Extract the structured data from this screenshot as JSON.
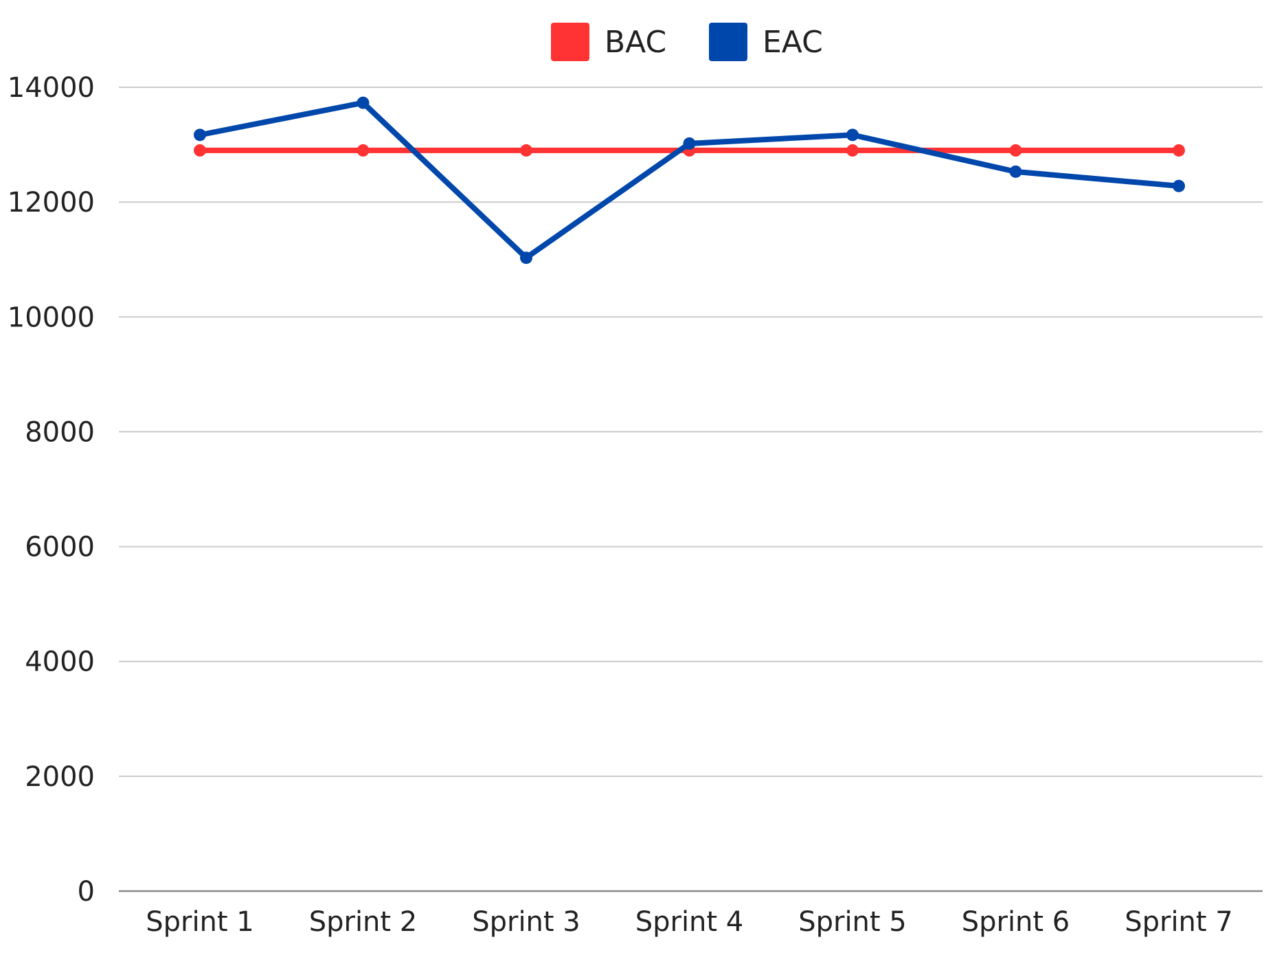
{
  "chart_data": {
    "type": "line",
    "title": "",
    "xlabel": "",
    "ylabel": "",
    "categories": [
      "Sprint 1",
      "Sprint 2",
      "Sprint 3",
      "Sprint 4",
      "Sprint 5",
      "Sprint 6",
      "Sprint 7"
    ],
    "ylim": [
      0,
      14000
    ],
    "yticks": [
      "0",
      "2000",
      "4000",
      "6000",
      "8000",
      "10000",
      "12000",
      "14000"
    ],
    "grid": true,
    "legend_position": "top-center",
    "series": [
      {
        "name": "BAC",
        "color": "#ff3333",
        "values": [
          12900,
          12900,
          12900,
          12900,
          12900,
          12900,
          12900
        ]
      },
      {
        "name": "EAC",
        "color": "#0047ab",
        "values": [
          13170,
          13730,
          11030,
          13020,
          13170,
          12530,
          12280
        ]
      }
    ]
  }
}
